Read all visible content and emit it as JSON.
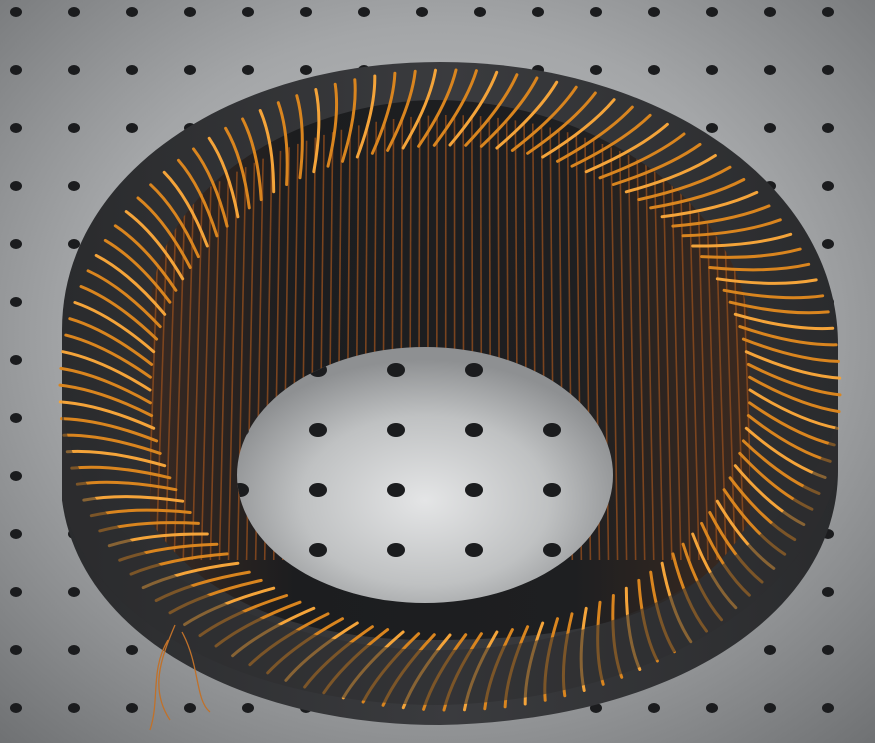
{
  "scene": {
    "subject": "coil-former",
    "colors": {
      "table_light": "#b9bbbc",
      "table_mid": "#8f9193",
      "table_dark": "#5f6163",
      "hole": "#1b1c1e",
      "former_dark": "#262729",
      "former_rim": "#3c3d40",
      "former_inner": "#151617",
      "wire_copper": "#d9851f",
      "wire_bright": "#f4a43a",
      "wire_inner": "#8a4a1e"
    }
  }
}
